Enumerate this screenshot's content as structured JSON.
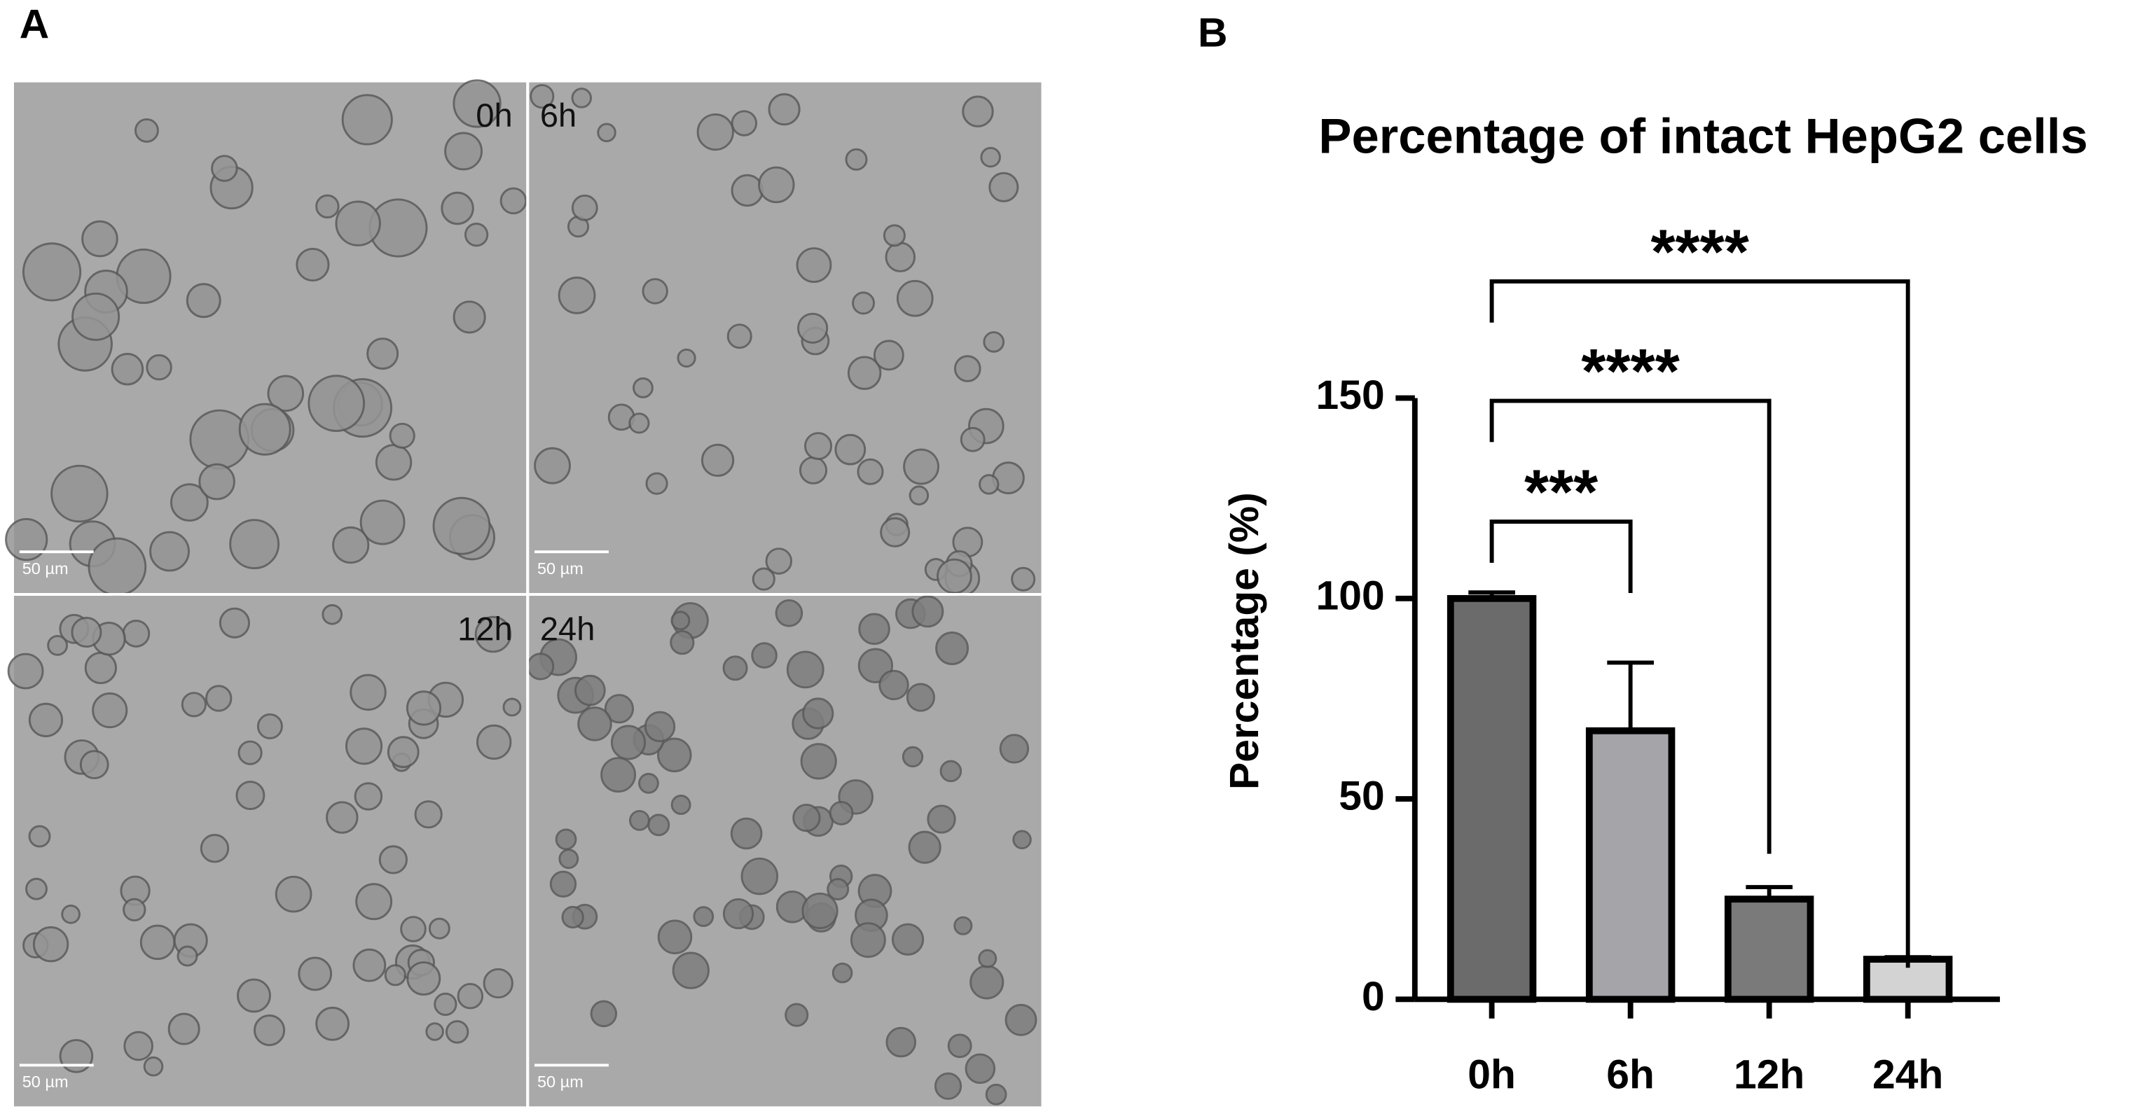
{
  "panel_labels": {
    "a": "A",
    "b": "B"
  },
  "micrographs": [
    {
      "label": "0h",
      "scale_bar": "50 µm"
    },
    {
      "label": "6h",
      "scale_bar": "50 µm"
    },
    {
      "label": "12h",
      "scale_bar": "50 µm"
    },
    {
      "label": "24h",
      "scale_bar": "50 µm"
    }
  ],
  "chart_data": {
    "type": "bar",
    "title": "Percentage of intact HepG2 cells",
    "y_label": "Percentage (%)",
    "categories": [
      "0h",
      "6h",
      "12h",
      "24h"
    ],
    "values": [
      100,
      67,
      25,
      10
    ],
    "errors": [
      1.5,
      17,
      3,
      0.5
    ],
    "colors": [
      "#6b6b6b",
      "#a4a4a9",
      "#7a7a7a",
      "#d3d3d3"
    ],
    "ylim": [
      0,
      150
    ],
    "yticks": [
      0,
      50,
      100,
      150
    ],
    "annotations": [
      {
        "text": "***"
      },
      {
        "text": "****"
      },
      {
        "text": "****"
      }
    ]
  }
}
